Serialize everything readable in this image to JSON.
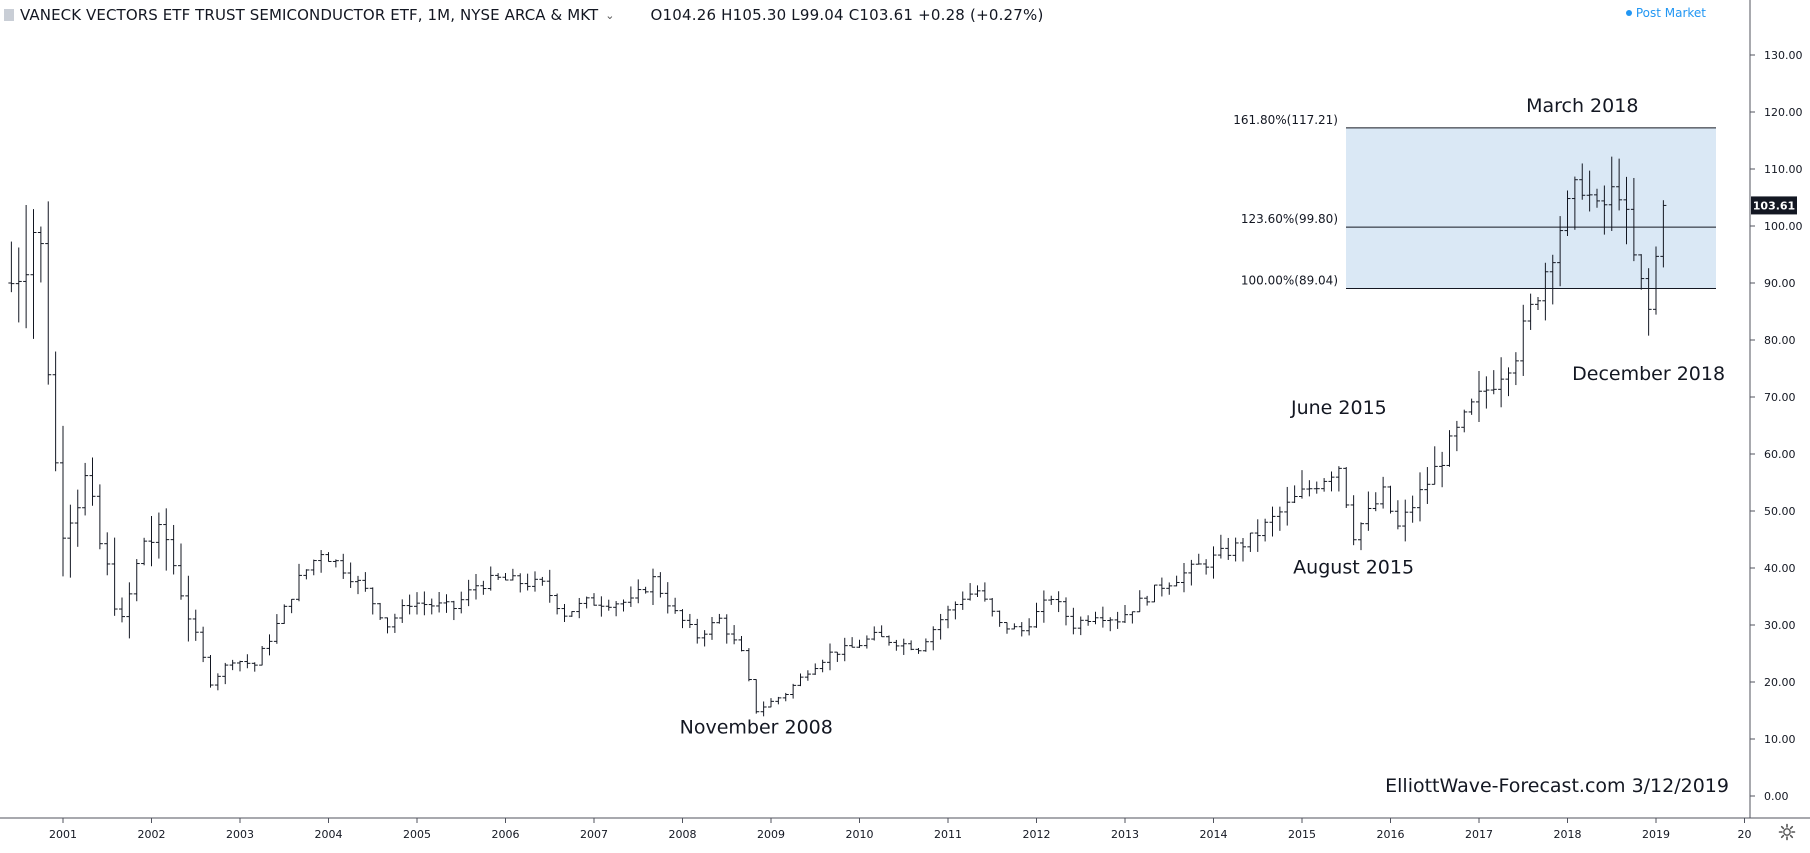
{
  "header": {
    "symbol_title": "VANECK VECTORS ETF TRUST SEMICONDUCTOR ETF, 1M, NYSE ARCA & MKT",
    "ohlc": "O104.26  H105.30  L99.04  C103.61  +0.28 (+0.27%)"
  },
  "post_market": "Post Market",
  "last_price_label": "103.61",
  "watermark": "ElliottWave-Forecast.com 3/12/2019",
  "colors": {
    "bars": "#131722",
    "fib_fill": "#dae8f5",
    "fib_line": "#131722",
    "price_tag_bg": "#131722",
    "accent": "#2196f3"
  },
  "chart_data": {
    "type": "bar",
    "subtype": "ohlc",
    "timeframe": "1M",
    "x_start": "2000-06",
    "ylim": [
      -3,
      135
    ],
    "y_ticks": [
      "0.00",
      "10.00",
      "20.00",
      "30.00",
      "40.00",
      "50.00",
      "60.00",
      "70.00",
      "80.00",
      "90.00",
      "100.00",
      "110.00",
      "120.00",
      "130.00"
    ],
    "x_ticks": [
      "2001",
      "2002",
      "2003",
      "2004",
      "2005",
      "2006",
      "2007",
      "2008",
      "2009",
      "2010",
      "2011",
      "2012",
      "2013",
      "2014",
      "2015",
      "2016",
      "2017",
      "2018",
      "2019",
      "20"
    ],
    "anchors": [
      [
        "2000-06",
        90
      ],
      [
        "2000-09",
        100
      ],
      [
        "2000-10",
        95
      ],
      [
        "2000-12",
        58
      ],
      [
        "2001-01",
        48
      ],
      [
        "2001-04",
        55
      ],
      [
        "2001-06",
        44
      ],
      [
        "2001-09",
        30
      ],
      [
        "2001-12",
        45
      ],
      [
        "2002-03",
        45
      ],
      [
        "2002-06",
        32
      ],
      [
        "2002-09",
        20
      ],
      [
        "2002-12",
        24
      ],
      [
        "2003-03",
        23
      ],
      [
        "2003-06",
        30
      ],
      [
        "2003-09",
        38
      ],
      [
        "2003-12",
        43
      ],
      [
        "2004-03",
        40
      ],
      [
        "2004-06",
        36
      ],
      [
        "2004-09",
        30
      ],
      [
        "2004-12",
        34
      ],
      [
        "2005-06",
        33
      ],
      [
        "2005-09",
        37
      ],
      [
        "2005-12",
        38
      ],
      [
        "2006-06",
        37
      ],
      [
        "2006-09",
        32
      ],
      [
        "2006-12",
        34
      ],
      [
        "2007-06",
        34
      ],
      [
        "2007-09",
        38
      ],
      [
        "2007-12",
        32
      ],
      [
        "2008-03",
        28
      ],
      [
        "2008-06",
        31
      ],
      [
        "2008-09",
        25
      ],
      [
        "2008-11",
        15
      ],
      [
        "2009-03",
        18
      ],
      [
        "2009-06",
        22
      ],
      [
        "2009-09",
        25
      ],
      [
        "2009-12",
        26
      ],
      [
        "2010-03",
        28
      ],
      [
        "2010-06",
        27
      ],
      [
        "2010-09",
        26
      ],
      [
        "2010-12",
        31
      ],
      [
        "2011-03",
        35
      ],
      [
        "2011-05",
        36
      ],
      [
        "2011-08",
        30
      ],
      [
        "2011-11",
        29
      ],
      [
        "2012-03",
        35
      ],
      [
        "2012-06",
        30
      ],
      [
        "2012-09",
        32
      ],
      [
        "2012-12",
        31
      ],
      [
        "2013-06",
        37
      ],
      [
        "2013-12",
        41
      ],
      [
        "2014-06",
        45
      ],
      [
        "2014-12",
        52
      ],
      [
        "2015-03",
        55
      ],
      [
        "2015-06",
        58
      ],
      [
        "2015-08",
        46
      ],
      [
        "2015-12",
        53
      ],
      [
        "2016-02",
        47
      ],
      [
        "2016-06",
        55
      ],
      [
        "2016-12",
        68
      ],
      [
        "2017-06",
        78
      ],
      [
        "2017-08",
        85
      ],
      [
        "2017-12",
        100
      ],
      [
        "2018-03",
        108
      ],
      [
        "2018-05",
        102
      ],
      [
        "2018-08",
        107
      ],
      [
        "2018-10",
        94
      ],
      [
        "2018-12",
        85
      ],
      [
        "2019-02",
        103.61
      ]
    ],
    "fib_levels": [
      {
        "label": "161.80%(117.21)",
        "value": 117.21
      },
      {
        "label": "123.60%(99.80)",
        "value": 99.8
      },
      {
        "label": "100.00%(89.04)",
        "value": 89.04
      }
    ],
    "annotations": [
      {
        "text": "March 2018",
        "date": "2018-03",
        "value": 120
      },
      {
        "text": "December  2018",
        "date": "2018-12",
        "value": 73
      },
      {
        "text": "June 2015",
        "date": "2015-06",
        "value": 67
      },
      {
        "text": "August 2015",
        "date": "2015-08",
        "value": 39
      },
      {
        "text": "November 2008",
        "date": "2008-11",
        "value": 11
      }
    ],
    "last_price": 103.61
  }
}
